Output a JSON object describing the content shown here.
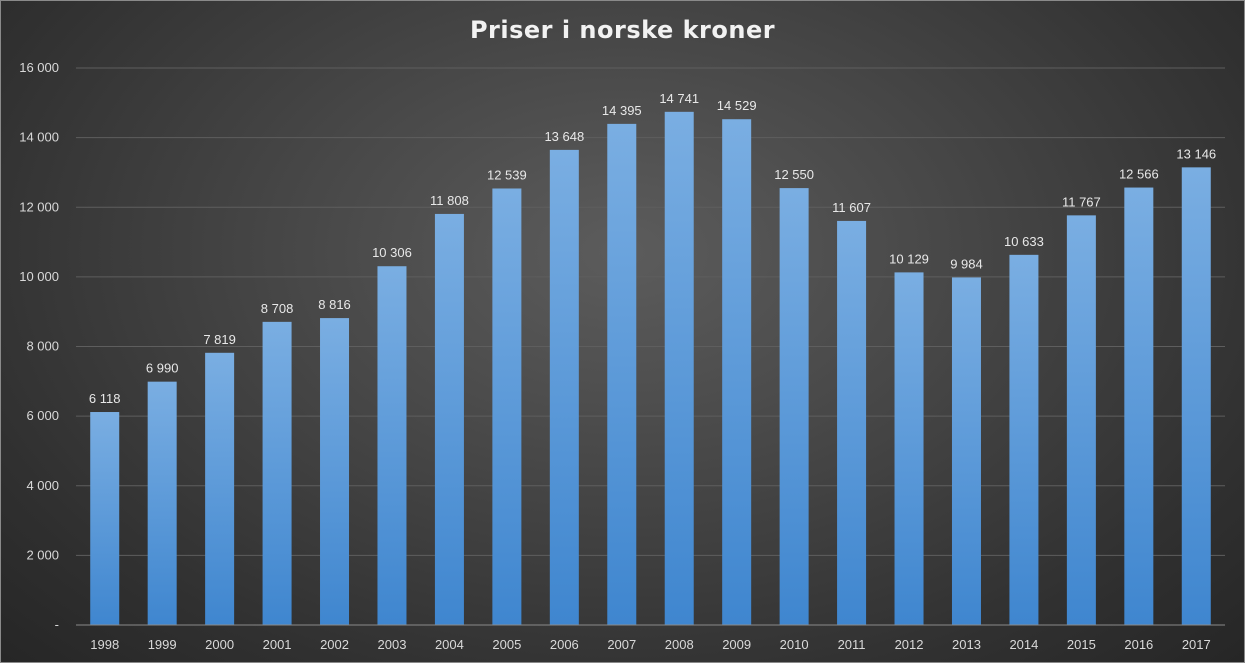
{
  "chart_data": {
    "type": "bar",
    "title": "Priser i norske kroner",
    "xlabel": "",
    "ylabel": "",
    "categories": [
      "1998",
      "1999",
      "2000",
      "2001",
      "2002",
      "2003",
      "2004",
      "2005",
      "2006",
      "2007",
      "2008",
      "2009",
      "2010",
      "2011",
      "2012",
      "2013",
      "2014",
      "2015",
      "2016",
      "2017"
    ],
    "values": [
      6118,
      6990,
      7819,
      8708,
      8816,
      10306,
      11808,
      12539,
      13648,
      14395,
      14741,
      14529,
      12550,
      11607,
      10129,
      9984,
      10633,
      11767,
      12566,
      13146
    ],
    "data_labels": [
      "6 118",
      "6 990",
      "7 819",
      "8 708",
      "8 816",
      "10 306",
      "11 808",
      "12 539",
      "13 648",
      "14 395",
      "14 741",
      "14 529",
      "12 550",
      "11 607",
      "10 129",
      "9 984",
      "10 633",
      "11 767",
      "12 566",
      "13 146"
    ],
    "ylim": [
      0,
      16000
    ],
    "yticks": [
      0,
      2000,
      4000,
      6000,
      8000,
      10000,
      12000,
      14000,
      16000
    ],
    "ytick_labels": [
      "-",
      "2 000",
      "4 000",
      "6 000",
      "8 000",
      "10 000",
      "12 000",
      "14 000",
      "16 000"
    ],
    "grid": true,
    "legend": "none",
    "colors": {
      "bar_top": "#7aaee2",
      "bar_bottom": "#3f86cf",
      "grid": "#5e5e5e",
      "axis": "#8a8a8a",
      "text": "#d9d9d9"
    }
  }
}
